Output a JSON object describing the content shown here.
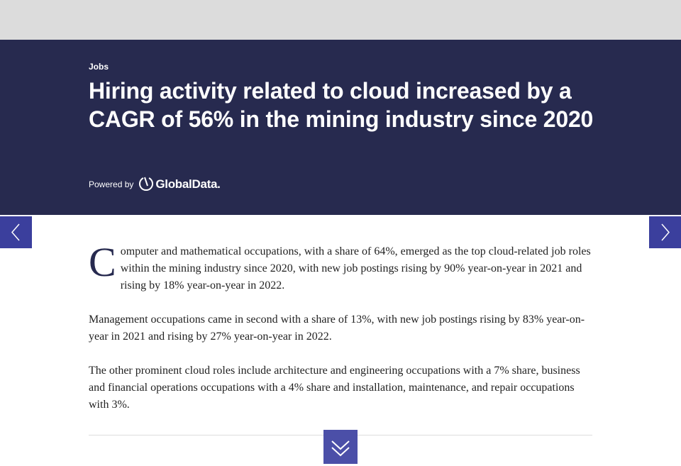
{
  "header": {
    "category": "Jobs",
    "title": "Hiring activity related to cloud increased by a CAGR of 56% in the mining industry since 2020",
    "powered_by": "Powered by",
    "brand": "GlobalData."
  },
  "article": {
    "paragraphs": [
      "Computer and mathematical occupations, with a share of 64%, emerged as the top cloud-related job roles within the mining industry since 2020, with new job postings rising by 90% year-on-year in 2021 and rising by 18% year-on-year in 2022.",
      "Management occupations came in second with a share of 13%, with new job postings rising by 83% year-on-year in 2021 and rising by 27% year-on-year in 2022.",
      "The other prominent cloud roles include architecture and engineering occupations with a 7% share, business and financial operations occupations with a 4% share and installation, maintenance, and repair occupations with 3%."
    ]
  }
}
